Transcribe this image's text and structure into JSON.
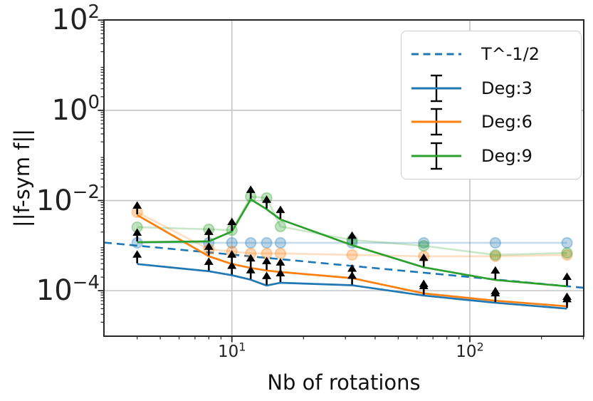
{
  "chart_data": {
    "type": "line",
    "title": "",
    "xlabel": "Nb of rotations",
    "ylabel": "||f-sym f||",
    "xscale": "log",
    "yscale": "log",
    "xlim": [
      2.9,
      301
    ],
    "ylim": [
      9.8e-06,
      101
    ],
    "grid": true,
    "legend_position": "upper right",
    "lolims_arrows": true,
    "x": [
      4,
      8,
      10,
      12,
      14,
      16,
      32,
      64,
      128,
      256
    ],
    "series": [
      {
        "name": "T^-1/2",
        "style": "dashed",
        "color": "#1f77b4",
        "x": [
          2.9,
          301
        ],
        "values": [
          0.00117,
          0.000116
        ]
      },
      {
        "name": "Deg:3",
        "style": "solid",
        "color": "#1f77b4",
        "values": [
          0.00039,
          0.00027,
          0.00022,
          0.000175,
          0.00013,
          0.00015,
          0.000132,
          7.8e-05,
          5.4e-05,
          4e-05
        ],
        "faded_values": [
          0.00115,
          0.00115,
          0.00115,
          0.00115,
          0.00115,
          0.00115,
          0.00115,
          0.00115,
          0.00115,
          0.00115
        ]
      },
      {
        "name": "Deg:6",
        "style": "solid",
        "color": "#ff7f0e",
        "values": [
          0.00475,
          0.00058,
          0.00039,
          0.00032,
          0.00028,
          0.00026,
          0.00019,
          8.7e-05,
          6e-05,
          4.5e-05
        ],
        "faded_values": [
          0.0055,
          0.00083,
          0.00074,
          0.00067,
          0.00067,
          0.00067,
          0.00062,
          0.00058,
          0.00058,
          0.00062
        ]
      },
      {
        "name": "Deg:9",
        "style": "solid",
        "color": "#2ca02c",
        "values": [
          0.00119,
          0.00124,
          0.00206,
          0.0106,
          0.0064,
          0.0038,
          0.00102,
          0.00033,
          0.000173,
          0.000125
        ],
        "faded_values": [
          0.00256,
          0.0023,
          0.0022,
          0.0122,
          0.0114,
          0.00265,
          0.00133,
          0.00099,
          0.00062,
          0.00069
        ]
      }
    ]
  },
  "axes": {
    "x_ticks": [
      {
        "base": "10",
        "exp": "1",
        "value": 10
      },
      {
        "base": "10",
        "exp": "2",
        "value": 100
      }
    ],
    "y_ticks": [
      {
        "base": "10",
        "exp": "2",
        "value": 100
      },
      {
        "base": "10",
        "exp": "0",
        "value": 1
      },
      {
        "base": "10",
        "exp": "−2",
        "value": 0.01
      },
      {
        "base": "10",
        "exp": "−4",
        "value": 0.0001
      }
    ]
  },
  "legend": {
    "entries": [
      {
        "label": "T^-1/2",
        "color": "#1f77b4",
        "handle": "dashed-line"
      },
      {
        "label": "Deg:3",
        "color": "#1f77b4",
        "handle": "errorbar-line"
      },
      {
        "label": "Deg:6",
        "color": "#ff7f0e",
        "handle": "errorbar-line"
      },
      {
        "label": "Deg:9",
        "color": "#2ca02c",
        "handle": "errorbar-line"
      }
    ]
  },
  "style_colors": {
    "grid": "#c4c4c4",
    "spine": "#262626",
    "arrow": "#000000",
    "legend_border": "#cccccc"
  }
}
